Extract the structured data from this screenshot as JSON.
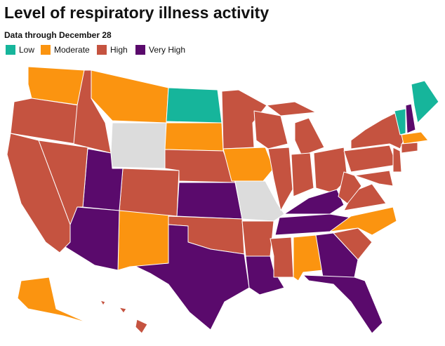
{
  "title": "Level of respiratory illness activity",
  "subtitle": "Data through December 28",
  "legend": [
    {
      "label": "Low",
      "color": "#16b59b"
    },
    {
      "label": "Moderate",
      "color": "#fb9410"
    },
    {
      "label": "High",
      "color": "#c55340"
    },
    {
      "label": "Very High",
      "color": "#5a0a6c"
    }
  ]
}
